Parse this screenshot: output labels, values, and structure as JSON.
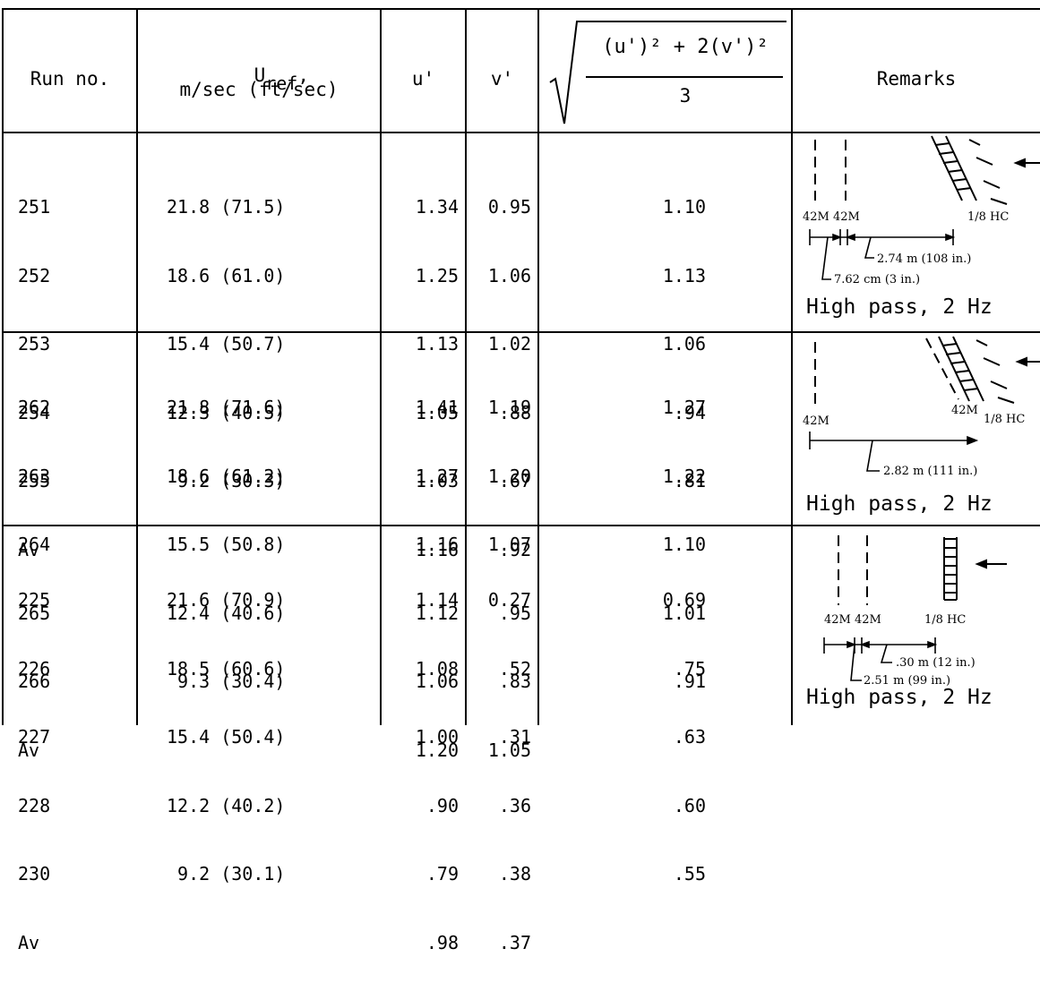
{
  "table": {
    "headers": {
      "run_no": "Run no.",
      "uref_symbol": "U",
      "uref_sub": "ref",
      "uref_comma": ",",
      "uref_units": "m/sec (ft/sec)",
      "u_prime": "u'",
      "v_prime": "v'",
      "rms_numerator": "(u')² + 2(v')²",
      "rms_denominator": "3",
      "remarks": "Remarks"
    },
    "groups": [
      {
        "runs": [
          "251",
          "252",
          "253",
          "254",
          "255",
          "Av"
        ],
        "uref": [
          "21.8 (71.5)",
          "18.6 (61.0)",
          "15.4 (50.7)",
          "12.3 (40.5)",
          " 9.2 (30.3)",
          ""
        ],
        "u": [
          "1.34",
          "1.25",
          "1.13",
          "1.05",
          "1.03",
          "1.16"
        ],
        "v": [
          "0.95",
          "1.06",
          "1.02",
          ".88",
          ".67",
          ".92"
        ],
        "rms": [
          "1.10",
          "1.13",
          "1.06",
          ".94",
          ".81",
          ""
        ],
        "remark": {
          "caption": "High pass, 2 Hz",
          "label_a": "42M",
          "label_b": "42M",
          "label_hc": "1/8 HC",
          "dim_long": "2.74 m (108 in.)",
          "dim_short": "7.62 cm (3 in.)"
        }
      },
      {
        "runs": [
          "262",
          "263",
          "264",
          "265",
          "266",
          "Av"
        ],
        "uref": [
          "21.8 (71.6)",
          "18.6 (61.2)",
          "15.5 (50.8)",
          "12.4 (40.6)",
          " 9.3 (30.4)",
          ""
        ],
        "u": [
          "1.41",
          "1.27",
          "1.16",
          "1.12",
          "1.06",
          "1.20"
        ],
        "v": [
          "1.19",
          "1.20",
          "1.07",
          ".95",
          ".83",
          "1.05"
        ],
        "rms": [
          "1.27",
          "1.22",
          "1.10",
          "1.01",
          ".91",
          ""
        ],
        "remark": {
          "caption": "High pass, 2 Hz",
          "label_a": "42M",
          "label_b": "42M",
          "label_hc": "1/8 HC",
          "dim_long": "2.82 m (111 in.)"
        }
      },
      {
        "runs": [
          "225",
          "226",
          "227",
          "228",
          "230",
          "Av"
        ],
        "uref": [
          "21.6 (70.9)",
          "18.5 (60.6)",
          "15.4 (50.4)",
          "12.2 (40.2)",
          " 9.2 (30.1)",
          ""
        ],
        "u": [
          "1.14",
          "1.08",
          "1.00",
          ".90",
          ".79",
          ".98"
        ],
        "v": [
          "0.27",
          ".52",
          ".31",
          ".36",
          ".38",
          ".37"
        ],
        "rms": [
          "0.69",
          ".75",
          ".63",
          ".60",
          ".55",
          ""
        ],
        "remark": {
          "caption": "High pass, 2 Hz",
          "label_a": "42M",
          "label_b": "42M",
          "label_hc": "1/8 HC",
          "dim_long": ".30 m (12 in.)",
          "dim_short": "2.51 m (99 in.)"
        }
      }
    ]
  }
}
